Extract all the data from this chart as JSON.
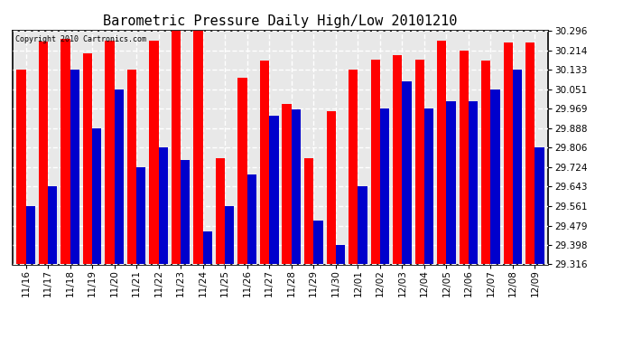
{
  "title": "Barometric Pressure Daily High/Low 20101210",
  "copyright": "Copyright 2010 Cartronics.com",
  "categories": [
    "11/16",
    "11/17",
    "11/18",
    "11/19",
    "11/20",
    "11/21",
    "11/22",
    "11/23",
    "11/24",
    "11/25",
    "11/26",
    "11/27",
    "11/28",
    "11/29",
    "11/30",
    "12/01",
    "12/02",
    "12/03",
    "12/04",
    "12/05",
    "12/06",
    "12/07",
    "12/08",
    "12/09"
  ],
  "highs": [
    30.133,
    30.25,
    30.261,
    30.2,
    30.255,
    30.133,
    30.255,
    30.296,
    30.296,
    29.76,
    30.098,
    30.17,
    29.99,
    29.76,
    29.96,
    30.133,
    30.175,
    30.195,
    30.175,
    30.255,
    30.214,
    30.17,
    30.248,
    30.248
  ],
  "lows": [
    29.561,
    29.643,
    30.133,
    29.888,
    30.051,
    29.724,
    29.806,
    29.755,
    29.455,
    29.561,
    29.695,
    29.94,
    29.965,
    29.5,
    29.398,
    29.643,
    29.969,
    30.082,
    29.969,
    30.0,
    30.0,
    30.051,
    30.133,
    29.806
  ],
  "ymin": 29.316,
  "ymax": 30.296,
  "yticks": [
    29.316,
    29.398,
    29.479,
    29.561,
    29.643,
    29.724,
    29.806,
    29.888,
    29.969,
    30.051,
    30.133,
    30.214,
    30.296
  ],
  "bar_color_high": "#FF0000",
  "bar_color_low": "#0000CC",
  "background_color": "#FFFFFF",
  "plot_bg_color": "#E8E8E8",
  "grid_color": "#FFFFFF",
  "title_fontsize": 11,
  "tick_fontsize": 7.5,
  "bar_width": 0.42
}
